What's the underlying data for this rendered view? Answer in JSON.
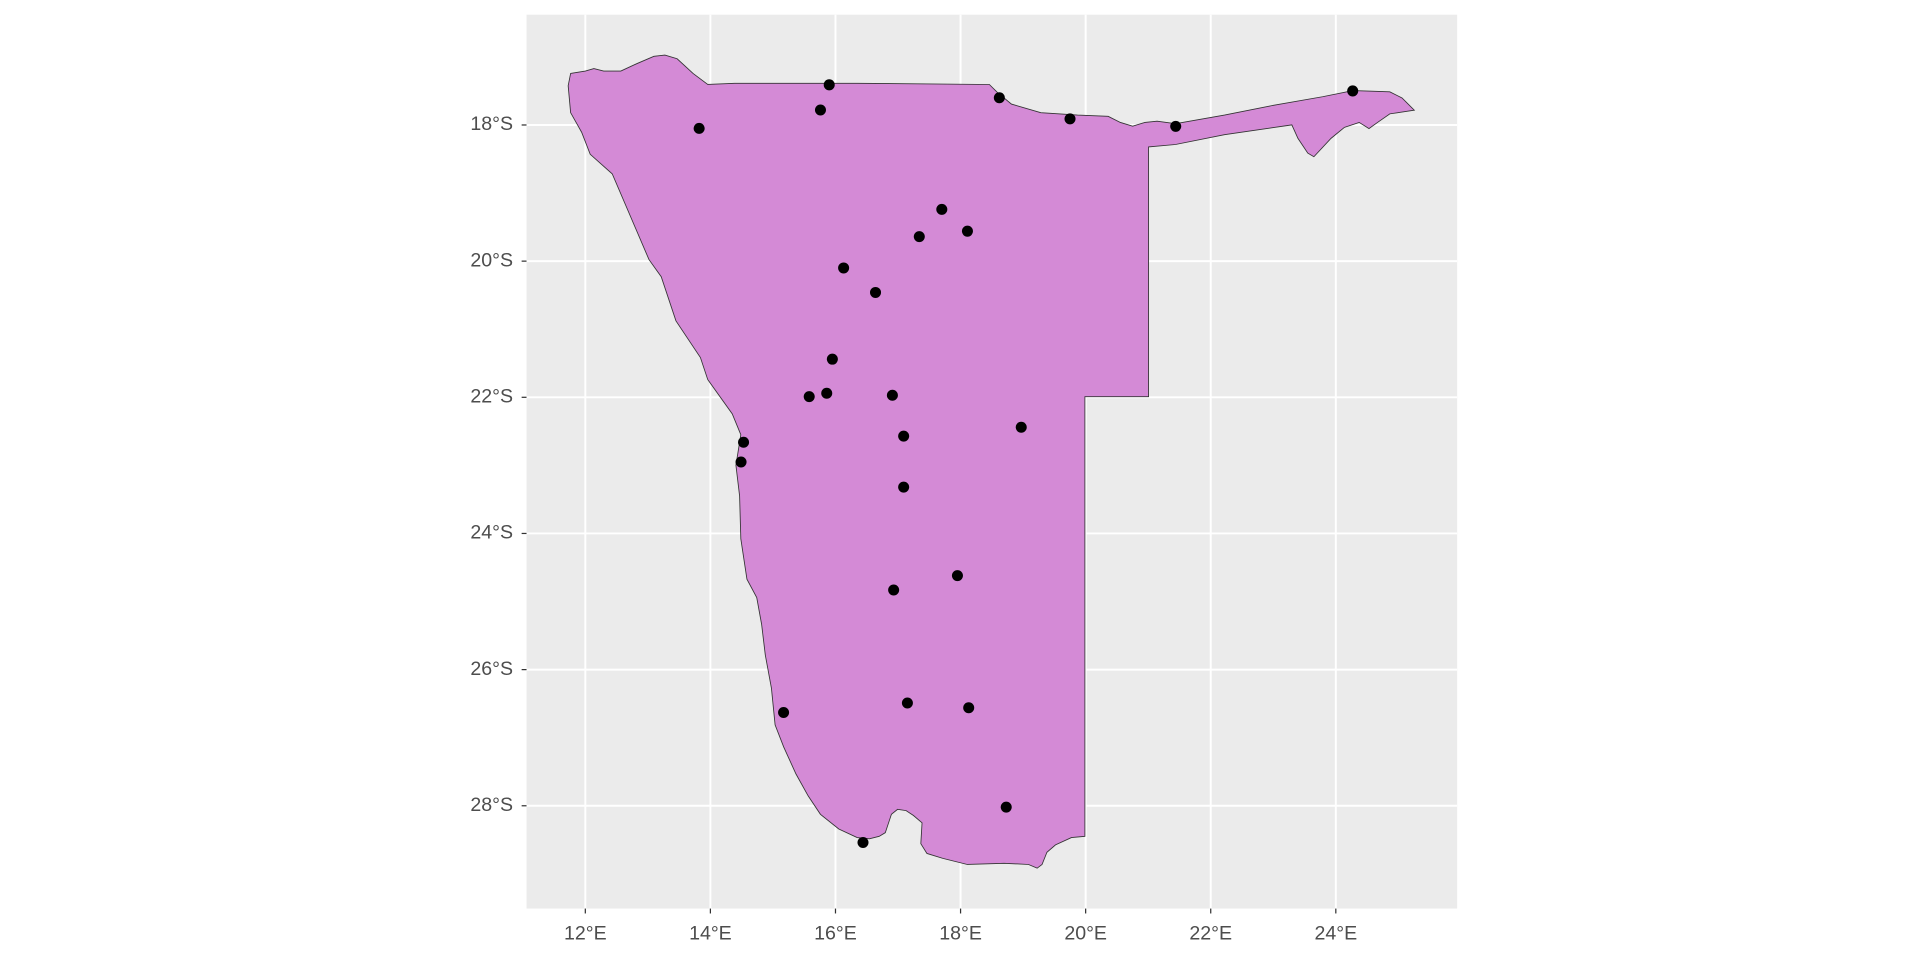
{
  "chart_data": {
    "type": "scatter",
    "x": [
      15.9,
      15.76,
      13.82,
      18.62,
      19.75,
      21.44,
      24.27,
      17.7,
      18.11,
      17.34,
      16.13,
      16.64,
      15.95,
      15.58,
      15.86,
      16.91,
      18.97,
      14.53,
      14.49,
      17.09,
      17.09,
      17.95,
      16.93,
      15.17,
      17.15,
      18.13,
      18.73,
      16.44
    ],
    "values": [
      -17.41,
      -17.78,
      -18.05,
      -17.6,
      -17.91,
      -18.02,
      -17.5,
      -19.24,
      -19.56,
      -19.64,
      -20.1,
      -20.46,
      -21.44,
      -21.99,
      -21.94,
      -21.97,
      -22.44,
      -22.66,
      -22.95,
      -22.57,
      -23.32,
      -24.62,
      -24.83,
      -26.63,
      -26.49,
      -26.56,
      -28.02,
      -28.54
    ],
    "color": "#000000",
    "region_fill": "#d48ad6",
    "xlim": [
      11.06,
      25.94
    ],
    "ylim": [
      -29.51,
      -16.38
    ],
    "xticks": [
      {
        "value": 12,
        "label": "12°E"
      },
      {
        "value": 14,
        "label": "14°E"
      },
      {
        "value": 16,
        "label": "16°E"
      },
      {
        "value": 18,
        "label": "18°E"
      },
      {
        "value": 20,
        "label": "20°E"
      },
      {
        "value": 22,
        "label": "22°E"
      },
      {
        "value": 24,
        "label": "24°E"
      }
    ],
    "yticks": [
      {
        "value": -18,
        "label": "18°S"
      },
      {
        "value": -20,
        "label": "20°S"
      },
      {
        "value": -22,
        "label": "22°S"
      },
      {
        "value": -24,
        "label": "24°S"
      },
      {
        "value": -26,
        "label": "26°S"
      },
      {
        "value": -28,
        "label": "28°S"
      }
    ],
    "grid": true
  }
}
